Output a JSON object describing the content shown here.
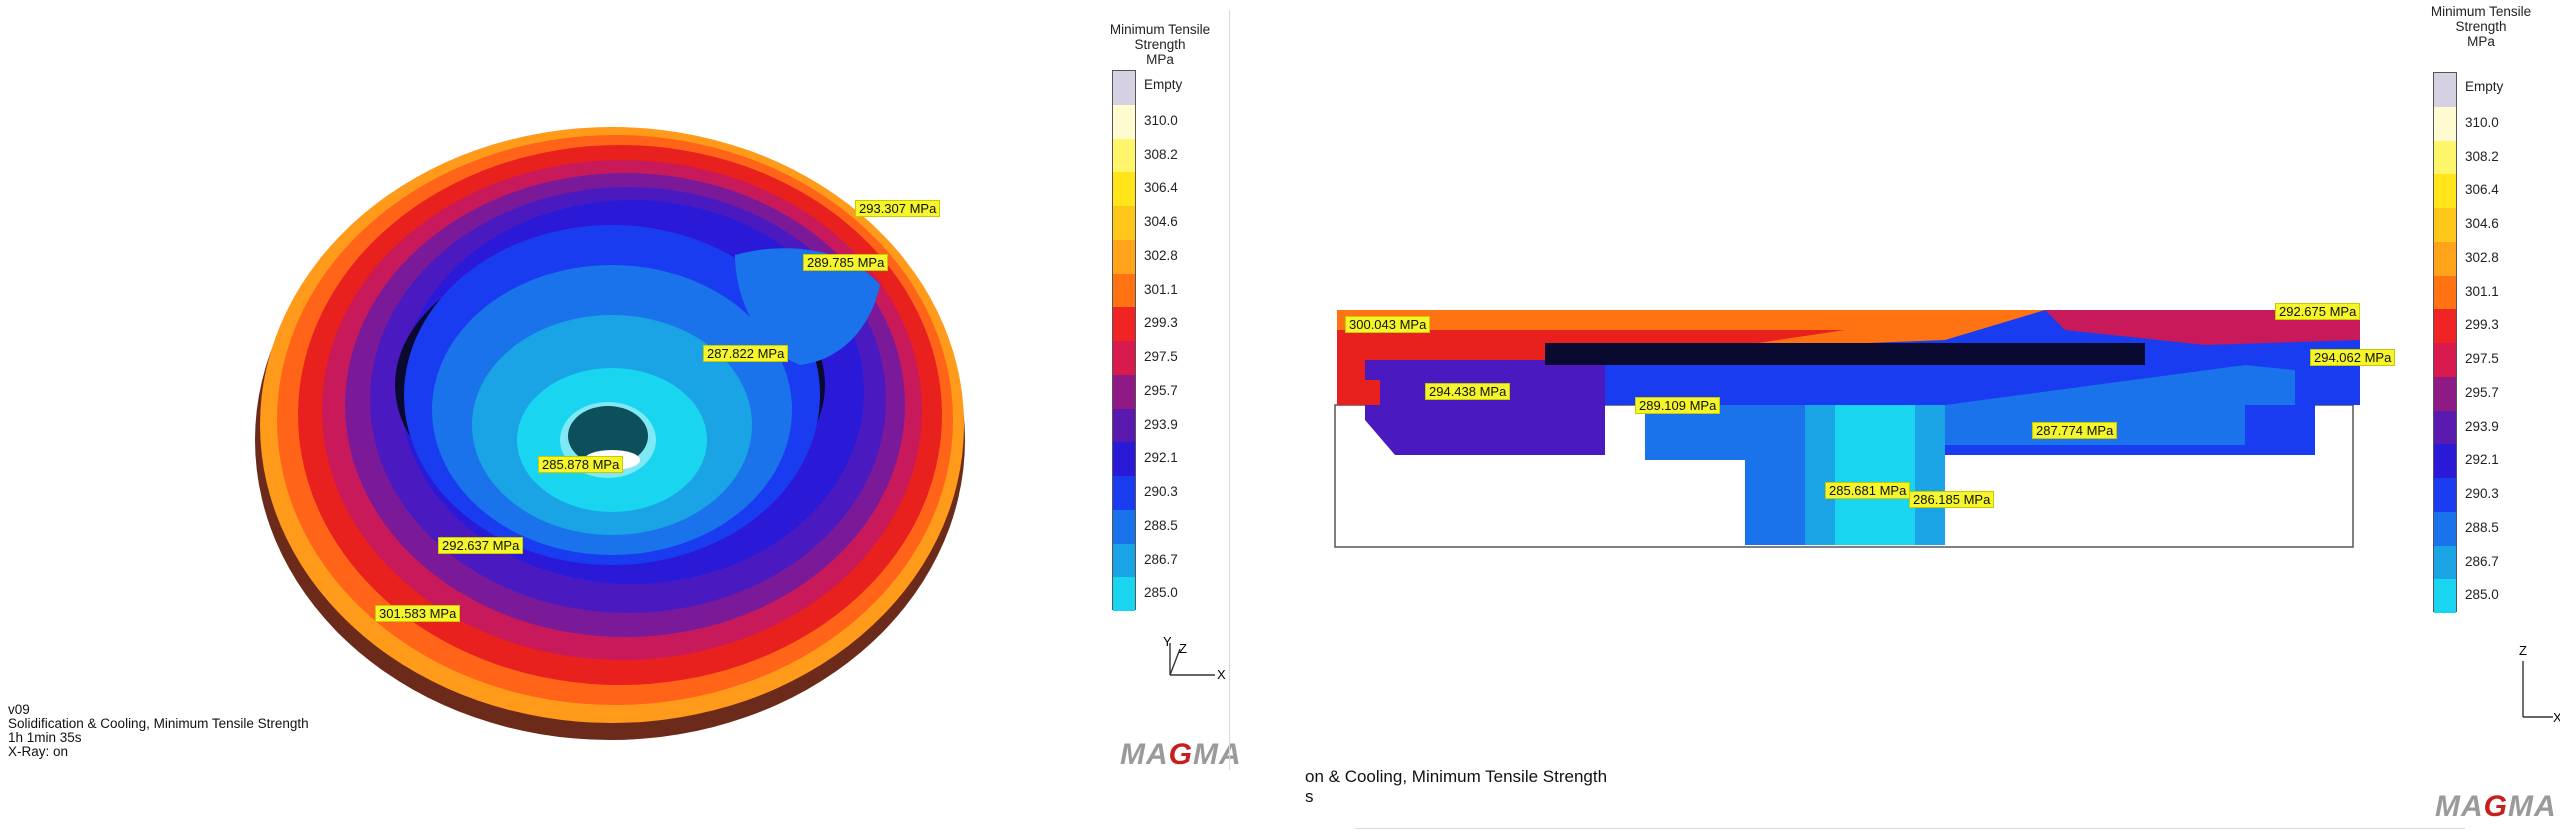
{
  "legend": {
    "title": [
      "Minimum Tensile",
      "Strength",
      "MPa"
    ],
    "entries": [
      {
        "label": "Empty",
        "color": "#d6d0e3"
      },
      {
        "label": "310.0",
        "color": "#fffbd0"
      },
      {
        "label": "308.2",
        "color": "#fff56a"
      },
      {
        "label": "306.4",
        "color": "#ffe51a"
      },
      {
        "label": "304.6",
        "color": "#ffc71a"
      },
      {
        "label": "302.8",
        "color": "#ffa41a"
      },
      {
        "label": "301.1",
        "color": "#ff7312"
      },
      {
        "label": "299.3",
        "color": "#f02424"
      },
      {
        "label": "297.5",
        "color": "#d81a4f"
      },
      {
        "label": "295.7",
        "color": "#8f1a86"
      },
      {
        "label": "293.9",
        "color": "#5a1ab0"
      },
      {
        "label": "292.1",
        "color": "#2a1ad8"
      },
      {
        "label": "290.3",
        "color": "#1a3cf0"
      },
      {
        "label": "288.5",
        "color": "#1a73ea"
      },
      {
        "label": "286.7",
        "color": "#1aa4e6"
      },
      {
        "label": "285.0",
        "color": "#1ad5f0"
      }
    ]
  },
  "left_view": {
    "callouts": [
      "293.307 MPa",
      "289.785 MPa",
      "287.822 MPa",
      "285.878 MPa",
      "292.637 MPa",
      "301.583 MPa"
    ],
    "info_lines": [
      "v09",
      "Solidification & Cooling, Minimum Tensile Strength",
      "1h 1min 35s",
      "X-Ray: on"
    ],
    "axes": {
      "x": "X",
      "y": "Y",
      "z": "Z"
    },
    "logo": "MAGMA"
  },
  "right_view": {
    "callouts": [
      "300.043 MPa",
      "292.675 MPa",
      "294.062 MPa",
      "294.438 MPa",
      "289.109 MPa",
      "287.774 MPa",
      "285.681 MPa",
      "286.185 MPa"
    ],
    "info_lines": [
      "on & Cooling, Minimum Tensile Strength",
      "s"
    ],
    "axes": {
      "x": "X",
      "z": "Z"
    },
    "logo": "MAGMA"
  },
  "colors": {
    "logo_red": "#c81e1e",
    "logo_gray": "#9a9a9a",
    "callout": "#f5f52b"
  }
}
